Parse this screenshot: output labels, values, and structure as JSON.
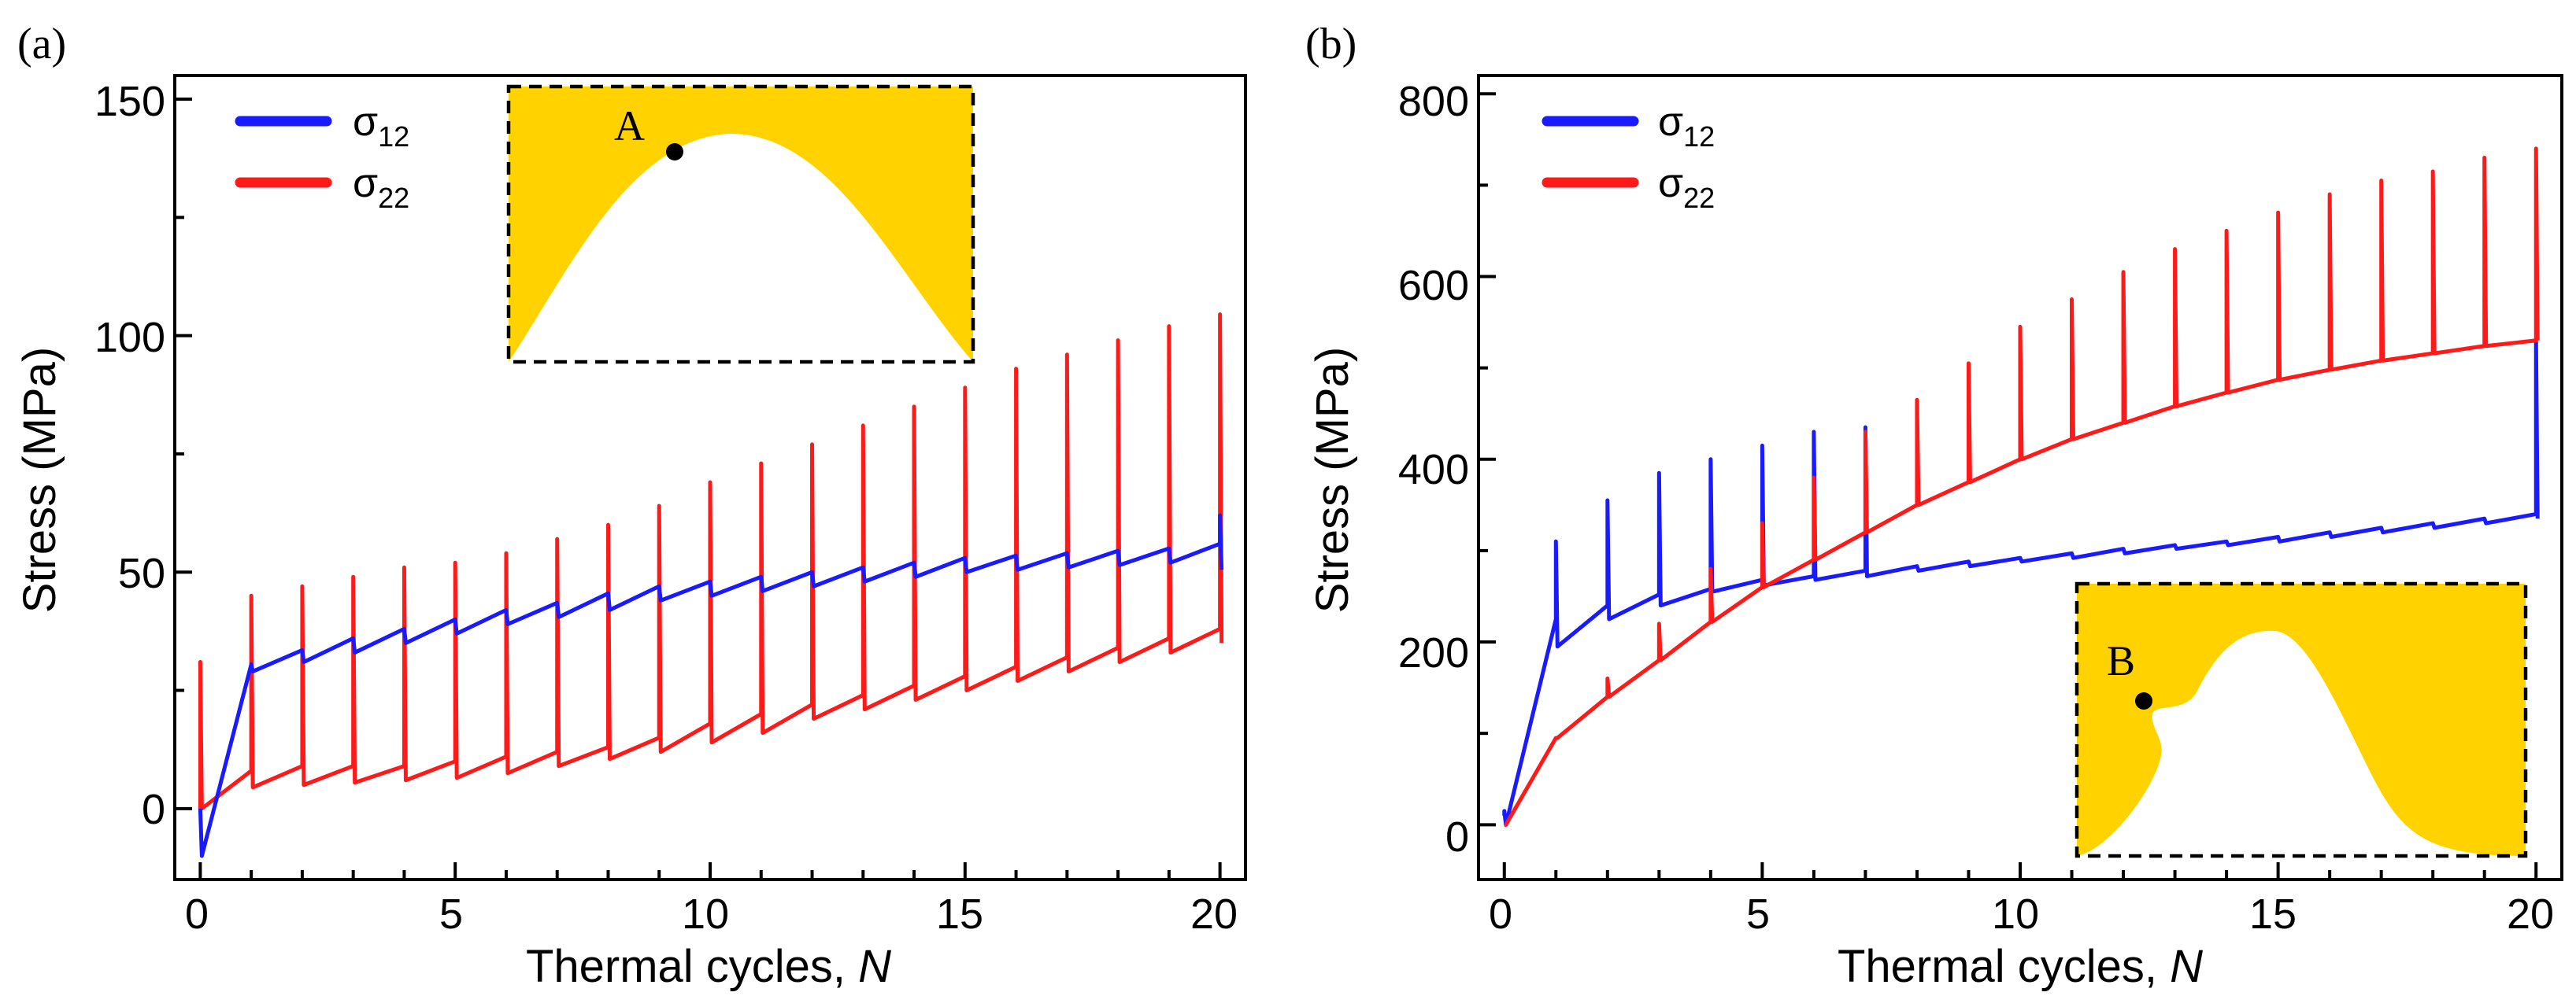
{
  "chart_data": [
    {
      "type": "line",
      "panel_label": "(a)",
      "xlabel": "Thermal cycles, ",
      "xlabel_italic": "N",
      "ylabel": "Stress (MPa)",
      "xlim": [
        -0.5,
        20.5
      ],
      "ylim": [
        -15,
        155
      ],
      "xticks": [
        0,
        5,
        10,
        15,
        20
      ],
      "yticks": [
        0,
        50,
        100,
        150
      ],
      "xtick_labels": [
        "0",
        "5",
        "10",
        "15",
        "20"
      ],
      "ytick_labels": [
        "0",
        "50",
        "100",
        "150"
      ],
      "grid": false,
      "legend_position": "top-left",
      "series": [
        {
          "name": "σ12",
          "symbol": "σ",
          "subscript": "12",
          "color": "#1a1aff",
          "cycle_end": [
            0,
            30.5,
            33.5,
            36,
            38,
            40,
            42,
            43.5,
            45.5,
            47,
            48,
            49,
            50,
            51,
            52,
            53,
            53.5,
            54,
            54.5,
            55,
            56
          ],
          "cycle_dip": [
            -10,
            29,
            31,
            33,
            35,
            37,
            39,
            40.5,
            42,
            44,
            45,
            46,
            47,
            48,
            49,
            50,
            50.5,
            51,
            51.5,
            52,
            50.5
          ],
          "cycle_spike": [
            0,
            0,
            0,
            0,
            0,
            0,
            0,
            0,
            0,
            0,
            0,
            0,
            0,
            0,
            0,
            0,
            0,
            0,
            0,
            0,
            62
          ]
        },
        {
          "name": "σ22",
          "symbol": "σ",
          "subscript": "22",
          "color": "#ff1a1a",
          "cycle_end": [
            0,
            8,
            9,
            9,
            9,
            10,
            11,
            12,
            13,
            15,
            18,
            20,
            22,
            24,
            26,
            28,
            30,
            32,
            34,
            36,
            38
          ],
          "cycle_dip": [
            0,
            4.5,
            5,
            5.5,
            6,
            6.5,
            7.5,
            9,
            10.5,
            12,
            14,
            16,
            19,
            21,
            23,
            25,
            27,
            29,
            31,
            33,
            35
          ],
          "cycle_spike": [
            31,
            45,
            47,
            49,
            51,
            52,
            54,
            57,
            60,
            64,
            69,
            73,
            77,
            81,
            85,
            89,
            93,
            96,
            99,
            102,
            104.5
          ]
        }
      ],
      "inset": {
        "point_label": "A",
        "fill": "#ffd200"
      }
    },
    {
      "type": "line",
      "panel_label": "(b)",
      "xlabel": "Thermal cycles, ",
      "xlabel_italic": "N",
      "ylabel": "Stress (MPa)",
      "xlim": [
        -0.5,
        20.5
      ],
      "ylim": [
        -60,
        820
      ],
      "xticks": [
        0,
        5,
        10,
        15,
        20
      ],
      "yticks": [
        0,
        200,
        400,
        600,
        800
      ],
      "xtick_labels": [
        "0",
        "5",
        "10",
        "15",
        "20"
      ],
      "ytick_labels": [
        "0",
        "200",
        "400",
        "600",
        "800"
      ],
      "grid": false,
      "legend_position": "top-left",
      "series": [
        {
          "name": "σ12",
          "symbol": "σ",
          "subscript": "12",
          "color": "#1a1aff",
          "cycle_end": [
            10,
            225,
            240,
            252,
            258,
            268,
            272,
            278,
            283,
            288,
            292,
            297,
            302,
            306,
            310,
            315,
            320,
            325,
            330,
            335,
            340
          ],
          "cycle_dip": [
            0,
            195,
            225,
            240,
            255,
            262,
            268,
            272,
            278,
            283,
            288,
            292,
            297,
            302,
            306,
            310,
            315,
            320,
            325,
            330,
            335
          ],
          "cycle_spike": [
            15,
            310,
            355,
            385,
            400,
            415,
            430,
            435,
            0,
            0,
            0,
            0,
            0,
            0,
            0,
            0,
            0,
            0,
            0,
            0,
            530
          ]
        },
        {
          "name": "σ22",
          "symbol": "σ",
          "subscript": "22",
          "color": "#ff1a1a",
          "cycle_end": [
            0,
            95,
            140,
            180,
            222,
            260,
            290,
            320,
            350,
            375,
            400,
            422,
            440,
            458,
            473,
            487,
            498,
            508,
            516,
            524,
            530
          ],
          "cycle_dip": [
            0,
            95,
            140,
            180,
            222,
            260,
            290,
            320,
            350,
            375,
            400,
            422,
            440,
            458,
            473,
            487,
            498,
            508,
            516,
            524,
            530
          ],
          "cycle_spike": [
            0,
            0,
            160,
            220,
            280,
            330,
            380,
            430,
            465,
            505,
            545,
            575,
            605,
            630,
            650,
            670,
            690,
            705,
            715,
            730,
            740
          ]
        }
      ],
      "inset": {
        "point_label": "B",
        "fill": "#ffd200"
      }
    }
  ]
}
